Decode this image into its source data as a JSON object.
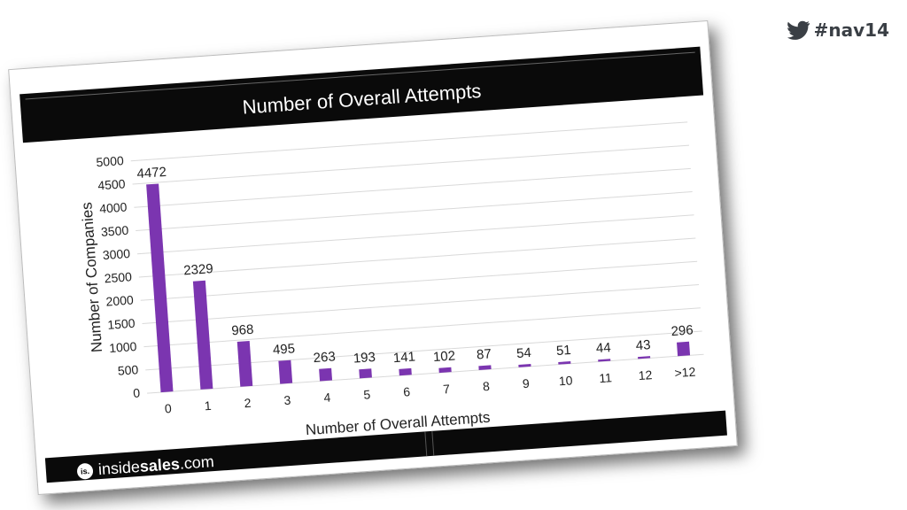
{
  "hashtag": "#nav14",
  "logo": {
    "icon": "is.",
    "part1": "inside",
    "part2": "sales",
    "part3": ".com"
  },
  "chart_data": {
    "type": "bar",
    "title": "Number of Overall Attempts",
    "x_label": "Number of Overall Attempts",
    "y_label": "Number of Companies",
    "categories": [
      "0",
      "1",
      "2",
      "3",
      "4",
      "5",
      "6",
      "7",
      "8",
      "9",
      "10",
      "11",
      "12",
      ">12"
    ],
    "values": [
      4472,
      2329,
      968,
      495,
      263,
      193,
      141,
      102,
      87,
      54,
      51,
      44,
      43,
      296
    ],
    "color": "#7b35b0",
    "ylim": [
      0,
      5000
    ],
    "yticks": [
      0,
      500,
      1000,
      1500,
      2000,
      2500,
      3000,
      3500,
      4000,
      4500,
      5000
    ],
    "grid": true
  }
}
